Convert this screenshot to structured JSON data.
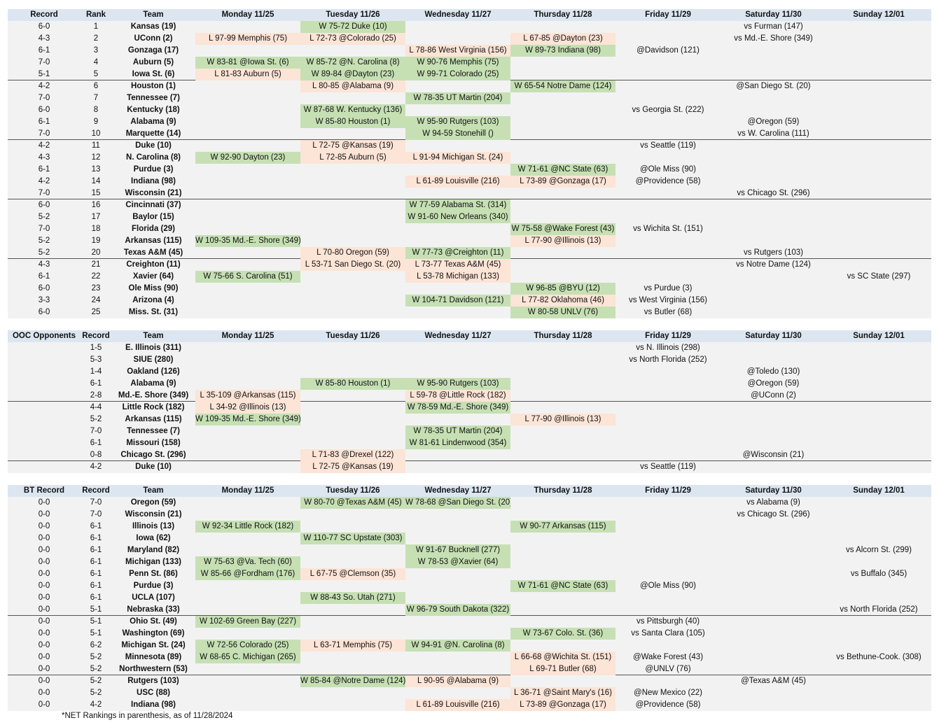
{
  "colors": {
    "header_bg": "#dce6f1",
    "row_bg": "#f2f2f2",
    "win_bg": "#c6e0b4",
    "loss_bg": "#fce4d6"
  },
  "headers": {
    "top": [
      "Record",
      "Rank",
      "Team",
      "Monday 11/25",
      "Tuesday 11/26",
      "Wednesday 11/27",
      "Thursday 11/28",
      "Friday 11/29",
      "Saturday 11/30",
      "Sunday 12/01"
    ],
    "ooc": [
      "OOC Opponents",
      "Record",
      "Team",
      "Monday 11/25",
      "Tuesday 11/26",
      "Wednesday 11/27",
      "Thursday 11/28",
      "Friday 11/29",
      "Saturday 11/30",
      "Sunday 12/01"
    ],
    "bt": [
      "BT Record",
      "Record",
      "Team",
      "Monday 11/25",
      "Tuesday 11/26",
      "Wednesday 11/27",
      "Thursday 11/28",
      "Friday 11/29",
      "Saturday 11/30",
      "Sunday 12/01"
    ]
  },
  "top25": [
    {
      "c": [
        "6-0",
        "1",
        "Kansas (19)",
        "",
        "W 75-72 Duke (10)",
        "",
        "",
        "",
        "vs Furman (147)",
        ""
      ]
    },
    {
      "c": [
        "4-3",
        "2",
        "UConn (2)",
        "L 97-99 Memphis (75)",
        "L 72-73 @Colorado (25)",
        "",
        "L 67-85 @Dayton (23)",
        "",
        "vs Md.-E. Shore (349)",
        ""
      ]
    },
    {
      "c": [
        "6-1",
        "3",
        "Gonzaga (17)",
        "",
        "",
        "L 78-86 West Virginia (156)",
        "W 89-73 Indiana (98)",
        "@Davidson (121)",
        "",
        ""
      ]
    },
    {
      "c": [
        "7-0",
        "4",
        "Auburn (5)",
        "W 83-81 @Iowa St. (6)",
        "W 85-72 @N. Carolina (8)",
        "W 90-76 Memphis (75)",
        "",
        "",
        "",
        ""
      ]
    },
    {
      "c": [
        "5-1",
        "5",
        "Iowa St. (6)",
        "L 81-83 Auburn (5)",
        "W 89-84 @Dayton (23)",
        "W 99-71 Colorado (25)",
        "",
        "",
        "",
        ""
      ],
      "sep": true
    },
    {
      "c": [
        "4-2",
        "6",
        "Houston (1)",
        "",
        "L 80-85 @Alabama (9)",
        "",
        "W 65-54 Notre Dame (124)",
        "",
        "@San Diego St. (20)",
        ""
      ]
    },
    {
      "c": [
        "7-0",
        "7",
        "Tennessee (7)",
        "",
        "",
        "W 78-35 UT Martin (204)",
        "",
        "",
        "",
        ""
      ]
    },
    {
      "c": [
        "6-0",
        "8",
        "Kentucky (18)",
        "",
        "W 87-68 W. Kentucky (136)",
        "",
        "",
        "vs Georgia St. (222)",
        "",
        ""
      ]
    },
    {
      "c": [
        "6-1",
        "9",
        "Alabama (9)",
        "",
        "W 85-80 Houston (1)",
        "W 95-90 Rutgers (103)",
        "",
        "",
        "@Oregon (59)",
        ""
      ]
    },
    {
      "c": [
        "7-0",
        "10",
        "Marquette (14)",
        "",
        "",
        "W 94-59 Stonehill ()",
        "",
        "",
        "vs W. Carolina (111)",
        ""
      ],
      "sep": true
    },
    {
      "c": [
        "4-2",
        "11",
        "Duke (10)",
        "",
        "L 72-75 @Kansas (19)",
        "",
        "",
        "vs Seattle (119)",
        "",
        ""
      ]
    },
    {
      "c": [
        "4-3",
        "12",
        "N. Carolina (8)",
        "W 92-90 Dayton (23)",
        "L 72-85 Auburn (5)",
        "L 91-94 Michigan St. (24)",
        "",
        "",
        "",
        ""
      ]
    },
    {
      "c": [
        "6-1",
        "13",
        "Purdue (3)",
        "",
        "",
        "",
        "W 71-61 @NC State (63)",
        "@Ole Miss (90)",
        "",
        ""
      ]
    },
    {
      "c": [
        "4-2",
        "14",
        "Indiana (98)",
        "",
        "",
        "L 61-89 Louisville (216)",
        "L 73-89 @Gonzaga (17)",
        "@Providence (58)",
        "",
        ""
      ]
    },
    {
      "c": [
        "7-0",
        "15",
        "Wisconsin (21)",
        "",
        "",
        "",
        "",
        "",
        "vs Chicago St. (296)",
        ""
      ],
      "sep": true
    },
    {
      "c": [
        "6-0",
        "16",
        "Cincinnati (37)",
        "",
        "",
        "W 77-59 Alabama St. (314)",
        "",
        "",
        "",
        ""
      ]
    },
    {
      "c": [
        "5-2",
        "17",
        "Baylor (15)",
        "",
        "",
        "W 91-60 New Orleans (340)",
        "",
        "",
        "",
        ""
      ]
    },
    {
      "c": [
        "7-0",
        "18",
        "Florida (29)",
        "",
        "",
        "",
        "W 75-58 @Wake Forest (43)",
        "vs Wichita St. (151)",
        "",
        ""
      ]
    },
    {
      "c": [
        "5-2",
        "19",
        "Arkansas (115)",
        "W 109-35 Md.-E. Shore (349)",
        "",
        "",
        "L 77-90 @Illinois (13)",
        "",
        "",
        ""
      ]
    },
    {
      "c": [
        "5-2",
        "20",
        "Texas A&M (45)",
        "",
        "L 70-80 Oregon (59)",
        "W 77-73 @Creighton (11)",
        "",
        "",
        "vs Rutgers (103)",
        ""
      ],
      "sep": true
    },
    {
      "c": [
        "4-3",
        "21",
        "Creighton (11)",
        "",
        "L 53-71 San Diego St. (20)",
        "L 73-77 Texas A&M (45)",
        "",
        "",
        "vs Notre Dame (124)",
        ""
      ]
    },
    {
      "c": [
        "6-1",
        "22",
        "Xavier (64)",
        "W 75-66 S. Carolina (51)",
        "",
        "L 53-78 Michigan (133)",
        "",
        "",
        "",
        "vs SC State (297)"
      ]
    },
    {
      "c": [
        "6-0",
        "23",
        "Ole Miss (90)",
        "",
        "",
        "",
        "W 96-85 @BYU (12)",
        "vs Purdue (3)",
        "",
        ""
      ]
    },
    {
      "c": [
        "3-3",
        "24",
        "Arizona (4)",
        "",
        "",
        "W 104-71 Davidson (121)",
        "L 77-82 Oklahoma (46)",
        "vs West Virginia (156)",
        "",
        ""
      ]
    },
    {
      "c": [
        "6-0",
        "25",
        "Miss. St. (31)",
        "",
        "",
        "",
        "W 80-58 UNLV (76)",
        "vs Butler (68)",
        "",
        ""
      ]
    }
  ],
  "ooc": [
    {
      "c": [
        "",
        "1-5",
        "E. Illinois (311)",
        "",
        "",
        "",
        "",
        "vs N. Illinois (298)",
        "",
        ""
      ]
    },
    {
      "c": [
        "",
        "5-3",
        "SIUE (280)",
        "",
        "",
        "",
        "",
        "vs North Florida (252)",
        "",
        ""
      ]
    },
    {
      "c": [
        "",
        "1-4",
        "Oakland (126)",
        "",
        "",
        "",
        "",
        "",
        "@Toledo (130)",
        ""
      ]
    },
    {
      "c": [
        "",
        "6-1",
        "Alabama (9)",
        "",
        "W 85-80 Houston (1)",
        "W 95-90 Rutgers (103)",
        "",
        "",
        "@Oregon (59)",
        ""
      ]
    },
    {
      "c": [
        "",
        "2-8",
        "Md.-E. Shore (349)",
        "L 35-109 @Arkansas (115)",
        "",
        "L 59-78 @Little Rock (182)",
        "",
        "",
        "@UConn (2)",
        ""
      ],
      "sep": true
    },
    {
      "c": [
        "",
        "4-4",
        "Little Rock (182)",
        "L 34-92 @Illinois (13)",
        "",
        "W 78-59 Md.-E. Shore (349)",
        "",
        "",
        "",
        ""
      ]
    },
    {
      "c": [
        "",
        "5-2",
        "Arkansas (115)",
        "W 109-35 Md.-E. Shore (349)",
        "",
        "",
        "L 77-90 @Illinois (13)",
        "",
        "",
        ""
      ]
    },
    {
      "c": [
        "",
        "7-0",
        "Tennessee (7)",
        "",
        "",
        "W 78-35 UT Martin (204)",
        "",
        "",
        "",
        ""
      ]
    },
    {
      "c": [
        "",
        "6-1",
        "Missouri (158)",
        "",
        "",
        "W 81-61 Lindenwood (354)",
        "",
        "",
        "",
        ""
      ]
    },
    {
      "c": [
        "",
        "0-8",
        "Chicago St. (296)",
        "",
        "L 71-83 @Drexel (122)",
        "",
        "",
        "",
        "@Wisconsin (21)",
        ""
      ],
      "sep": true
    },
    {
      "c": [
        "",
        "4-2",
        "Duke (10)",
        "",
        "L 72-75 @Kansas (19)",
        "",
        "",
        "vs Seattle (119)",
        "",
        ""
      ]
    }
  ],
  "bt": [
    {
      "c": [
        "0-0",
        "7-0",
        "Oregon (59)",
        "",
        "W 80-70 @Texas A&M (45)",
        "W 78-68 @San Diego St. (20)",
        "",
        "",
        "vs Alabama (9)",
        ""
      ]
    },
    {
      "c": [
        "0-0",
        "7-0",
        "Wisconsin (21)",
        "",
        "",
        "",
        "",
        "",
        "vs Chicago St. (296)",
        ""
      ]
    },
    {
      "c": [
        "0-0",
        "6-1",
        "Illinois (13)",
        "W 92-34 Little Rock (182)",
        "",
        "",
        "W 90-77 Arkansas (115)",
        "",
        "",
        ""
      ]
    },
    {
      "c": [
        "0-0",
        "6-1",
        "Iowa (62)",
        "",
        "W 110-77 SC Upstate (303)",
        "",
        "",
        "",
        "",
        ""
      ]
    },
    {
      "c": [
        "0-0",
        "6-1",
        "Maryland (82)",
        "",
        "",
        "W 91-67 Bucknell (277)",
        "",
        "",
        "",
        "vs Alcorn St. (299)"
      ]
    },
    {
      "c": [
        "0-0",
        "6-1",
        "Michigan (133)",
        "W 75-63 @Va. Tech (60)",
        "",
        "W 78-53 @Xavier (64)",
        "",
        "",
        "",
        ""
      ]
    },
    {
      "c": [
        "0-0",
        "6-1",
        "Penn St. (86)",
        "W 85-66 @Fordham (176)",
        "L 67-75 @Clemson (35)",
        "",
        "",
        "",
        "",
        "vs Buffalo (345)"
      ]
    },
    {
      "c": [
        "0-0",
        "6-1",
        "Purdue (3)",
        "",
        "",
        "",
        "W 71-61 @NC State (63)",
        "@Ole Miss (90)",
        "",
        ""
      ]
    },
    {
      "c": [
        "0-0",
        "6-1",
        "UCLA (107)",
        "",
        "W 88-43 So. Utah (271)",
        "",
        "",
        "",
        "",
        ""
      ]
    },
    {
      "c": [
        "0-0",
        "5-1",
        "Nebraska (33)",
        "",
        "",
        "W 96-79 South Dakota (322)",
        "",
        "",
        "",
        "vs North Florida (252)"
      ],
      "sep": true
    },
    {
      "c": [
        "0-0",
        "5-1",
        "Ohio St. (49)",
        "W 102-69 Green Bay (227)",
        "",
        "",
        "",
        "vs Pittsburgh (40)",
        "",
        ""
      ]
    },
    {
      "c": [
        "0-0",
        "5-1",
        "Washington (69)",
        "",
        "",
        "",
        "W 73-67 Colo. St. (36)",
        "vs Santa Clara (105)",
        "",
        ""
      ]
    },
    {
      "c": [
        "0-0",
        "6-2",
        "Michigan St. (24)",
        "W 72-56 Colorado (25)",
        "L 63-71 Memphis (75)",
        "W 94-91 @N. Carolina (8)",
        "",
        "",
        "",
        ""
      ]
    },
    {
      "c": [
        "0-0",
        "5-2",
        "Minnesota (89)",
        "W 68-65 C. Michigan (265)",
        "",
        "",
        "L 66-68 @Wichita St. (151)",
        "@Wake Forest (43)",
        "",
        "vs Bethune-Cook. (308)"
      ]
    },
    {
      "c": [
        "0-0",
        "5-2",
        "Northwestern (53)",
        "",
        "",
        "",
        "L 69-71 Butler (68)",
        "@UNLV (76)",
        "",
        ""
      ],
      "sep": true
    },
    {
      "c": [
        "0-0",
        "5-2",
        "Rutgers (103)",
        "",
        "W 85-84 @Notre Dame (124)",
        "L 90-95 @Alabama (9)",
        "",
        "",
        "@Texas A&M (45)",
        ""
      ]
    },
    {
      "c": [
        "0-0",
        "5-2",
        "USC (88)",
        "",
        "",
        "",
        "L 36-71 @Saint Mary's (16)",
        "@New Mexico (22)",
        "",
        ""
      ]
    },
    {
      "c": [
        "0-0",
        "4-2",
        "Indiana (98)",
        "",
        "",
        "L 61-89 Louisville (216)",
        "L 73-89 @Gonzaga (17)",
        "@Providence (58)",
        "",
        ""
      ]
    }
  ],
  "footnote": "*NET Rankings in parenthesis, as of 11/28/2024"
}
